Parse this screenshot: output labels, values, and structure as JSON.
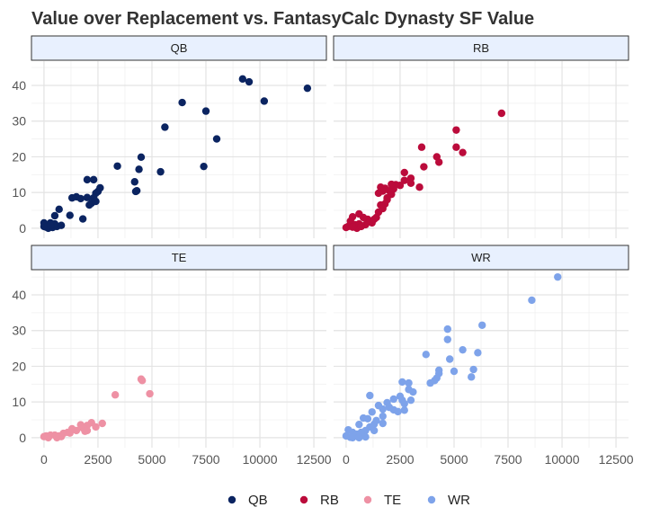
{
  "chart_data": {
    "type": "scatter",
    "title": "Value over Replacement vs. FantasyCalc Dynasty SF Value",
    "xlabel": "",
    "ylabel": "",
    "xlim": [
      -580,
      13080
    ],
    "ylim": [
      -2.8,
      46.8
    ],
    "x_ticks": [
      0,
      2500,
      5000,
      7500,
      10000,
      12500
    ],
    "y_ticks": [
      0,
      10,
      20,
      30,
      40
    ],
    "grid": true,
    "legend_position": "bottom",
    "facets": [
      "QB",
      "RB",
      "TE",
      "WR"
    ],
    "series": [
      {
        "name": "QB",
        "color": "#0b2461",
        "points": [
          [
            9200,
            41.8
          ],
          [
            9500,
            41
          ],
          [
            10200,
            35.6
          ],
          [
            12200,
            39.2
          ],
          [
            6400,
            35.2
          ],
          [
            7500,
            32.8
          ],
          [
            5600,
            28.3
          ],
          [
            8000,
            25
          ],
          [
            4500,
            19.9
          ],
          [
            3400,
            17.4
          ],
          [
            7400,
            17.3
          ],
          [
            4400,
            16.5
          ],
          [
            5400,
            15.8
          ],
          [
            4200,
            13
          ],
          [
            4300,
            10.5
          ],
          [
            4250,
            10.3
          ],
          [
            2600,
            11.3
          ],
          [
            2500,
            10.3
          ],
          [
            2400,
            9.8
          ],
          [
            2300,
            8.5
          ],
          [
            2200,
            7
          ],
          [
            2100,
            6.5
          ],
          [
            2400,
            7.5
          ],
          [
            2000,
            13.6
          ],
          [
            2300,
            13.6
          ],
          [
            1300,
            8.5
          ],
          [
            1500,
            8.8
          ],
          [
            1700,
            8.3
          ],
          [
            2000,
            8.6
          ],
          [
            1800,
            2.6
          ],
          [
            1200,
            3.6
          ],
          [
            700,
            5.3
          ],
          [
            500,
            3.5
          ],
          [
            300,
            1.5
          ],
          [
            100,
            1
          ],
          [
            0,
            0.5
          ],
          [
            200,
            0
          ],
          [
            400,
            0.2
          ],
          [
            600,
            0.5
          ],
          [
            800,
            0.8
          ],
          [
            500,
            1.2
          ],
          [
            0,
            1.5
          ],
          [
            100,
            0.3
          ],
          [
            300,
            0.8
          ]
        ]
      },
      {
        "name": "RB",
        "color": "#bb0b3b",
        "points": [
          [
            7200,
            32.2
          ],
          [
            5100,
            27.5
          ],
          [
            5100,
            22.7
          ],
          [
            5400,
            21.2
          ],
          [
            3500,
            22.7
          ],
          [
            4200,
            20
          ],
          [
            4300,
            18.5
          ],
          [
            3600,
            17.2
          ],
          [
            2700,
            15.6
          ],
          [
            3000,
            14
          ],
          [
            2700,
            13.4
          ],
          [
            3000,
            12.6
          ],
          [
            2500,
            12
          ],
          [
            3400,
            11.5
          ],
          [
            2300,
            12.2
          ],
          [
            2200,
            11
          ],
          [
            1600,
            11.5
          ],
          [
            1800,
            11.2
          ],
          [
            1700,
            10.4
          ],
          [
            2000,
            10.5
          ],
          [
            2100,
            9.5
          ],
          [
            1500,
            9.8
          ],
          [
            1900,
            8.5
          ],
          [
            1800,
            6.8
          ],
          [
            1600,
            6.5
          ],
          [
            1500,
            4.5
          ],
          [
            1400,
            3
          ],
          [
            1200,
            1.5
          ],
          [
            1000,
            2.5
          ],
          [
            800,
            3
          ],
          [
            600,
            4
          ],
          [
            300,
            3.2
          ],
          [
            200,
            2
          ],
          [
            100,
            0.5
          ],
          [
            0,
            0.2
          ],
          [
            400,
            1
          ],
          [
            600,
            1.2
          ],
          [
            900,
            1
          ],
          [
            1100,
            2
          ],
          [
            500,
            0
          ],
          [
            700,
            0.5
          ],
          [
            300,
            0.3
          ],
          [
            1300,
            2.5
          ],
          [
            1700,
            5.5
          ],
          [
            2100,
            12.3
          ],
          [
            1900,
            8
          ]
        ]
      },
      {
        "name": "TE",
        "color": "#ee91a4",
        "points": [
          [
            4500,
            16.4
          ],
          [
            4550,
            16
          ],
          [
            3300,
            12
          ],
          [
            4900,
            12.3
          ],
          [
            2700,
            4
          ],
          [
            2200,
            4.2
          ],
          [
            2400,
            3
          ],
          [
            2000,
            3.4
          ],
          [
            1700,
            3.6
          ],
          [
            1500,
            2
          ],
          [
            1900,
            1.8
          ],
          [
            1300,
            2.5
          ],
          [
            1100,
            1.5
          ],
          [
            900,
            1.2
          ],
          [
            700,
            0.5
          ],
          [
            500,
            0.7
          ],
          [
            300,
            0.7
          ],
          [
            100,
            0.5
          ],
          [
            0,
            0.3
          ],
          [
            200,
            0
          ],
          [
            600,
            0
          ],
          [
            800,
            0.3
          ],
          [
            1200,
            1.3
          ],
          [
            1800,
            2.7
          ],
          [
            2000,
            2
          ]
        ]
      },
      {
        "name": "WR",
        "color": "#7ea3ea",
        "points": [
          [
            9800,
            45
          ],
          [
            8600,
            38.5
          ],
          [
            6300,
            31.5
          ],
          [
            4700,
            30.4
          ],
          [
            4700,
            27.5
          ],
          [
            5400,
            24.6
          ],
          [
            6100,
            23.8
          ],
          [
            3700,
            23.3
          ],
          [
            4800,
            22
          ],
          [
            5000,
            18.6
          ],
          [
            5900,
            19.1
          ],
          [
            4300,
            18.9
          ],
          [
            4300,
            18
          ],
          [
            5800,
            17
          ],
          [
            3900,
            15.3
          ],
          [
            4100,
            16
          ],
          [
            4200,
            16.7
          ],
          [
            2600,
            15.6
          ],
          [
            2900,
            15.3
          ],
          [
            2900,
            13.5
          ],
          [
            3100,
            12.8
          ],
          [
            3000,
            10.5
          ],
          [
            1100,
            11.8
          ],
          [
            2500,
            11.6
          ],
          [
            2200,
            10.8
          ],
          [
            2600,
            10.5
          ],
          [
            2700,
            9.5
          ],
          [
            2700,
            7.7
          ],
          [
            2400,
            7.3
          ],
          [
            2200,
            7.8
          ],
          [
            1900,
            9.8
          ],
          [
            2000,
            8.5
          ],
          [
            1500,
            9
          ],
          [
            1700,
            8
          ],
          [
            1700,
            6
          ],
          [
            1200,
            7.2
          ],
          [
            1000,
            5.3
          ],
          [
            800,
            5.5
          ],
          [
            600,
            3.7
          ],
          [
            1300,
            3.8
          ],
          [
            1700,
            4
          ],
          [
            900,
            2
          ],
          [
            1300,
            2
          ],
          [
            900,
            0.2
          ],
          [
            400,
            0.5
          ],
          [
            300,
            1.5
          ],
          [
            100,
            2.2
          ],
          [
            0,
            0.5
          ],
          [
            200,
            0.1
          ],
          [
            500,
            1
          ],
          [
            700,
            1.5
          ],
          [
            1100,
            3
          ],
          [
            1400,
            4.8
          ],
          [
            600,
            0
          ],
          [
            300,
            0
          ]
        ]
      }
    ]
  }
}
